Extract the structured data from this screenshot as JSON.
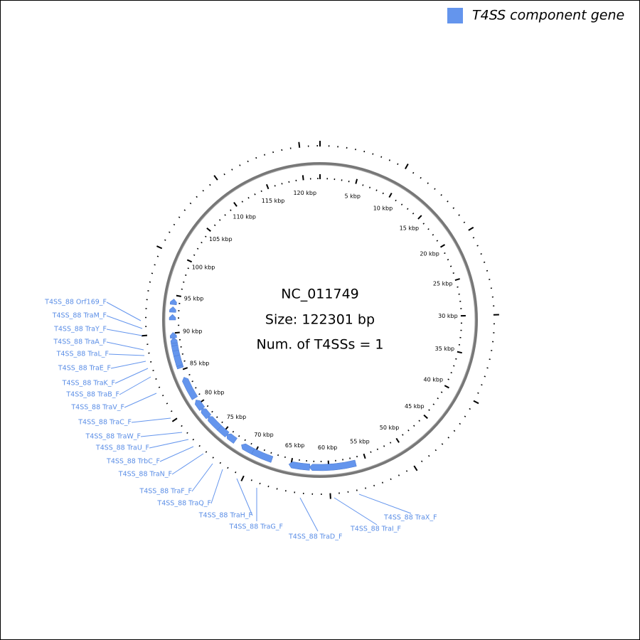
{
  "legend": {
    "label": "T4SS component gene"
  },
  "center": {
    "accession": "NC_011749",
    "size": "Size: 122301 bp",
    "count": "Num. of T4SSs = 1"
  },
  "kbp_labels": [
    "5 kbp",
    "10 kbp",
    "15 kbp",
    "20 kbp",
    "25 kbp",
    "30 kbp",
    "35 kbp",
    "40 kbp",
    "45 kbp",
    "50 kbp",
    "55 kbp",
    "60 kbp",
    "65 kbp",
    "70 kbp",
    "75 kbp",
    "80 kbp",
    "85 kbp",
    "90 kbp",
    "95 kbp",
    "100 kbp",
    "105 kbp",
    "110 kbp",
    "115 kbp",
    "120 kbp"
  ],
  "genes": [
    "T4SS_88 Orf169_F",
    "T4SS_88 TraM_F",
    "T4SS_88 TraY_F",
    "T4SS_88 TraA_F",
    "T4SS_88 TraL_F",
    "T4SS_88 TraE_F",
    "T4SS_88 TraK_F",
    "T4SS_88 TraB_F",
    "T4SS_88 TraV_F",
    "T4SS_88 TraC_F",
    "T4SS_88 TraW_F",
    "T4SS_88 TraU_F",
    "T4SS_88 TrbC_F",
    "T4SS_88 TraN_F",
    "T4SS_88 TraF_F",
    "T4SS_88 TraQ_F",
    "T4SS_88 TraH_F",
    "T4SS_88 TraG_F",
    "T4SS_88 TraD_F",
    "T4SS_88 TraI_F",
    "T4SS_88 TraX_F"
  ]
}
